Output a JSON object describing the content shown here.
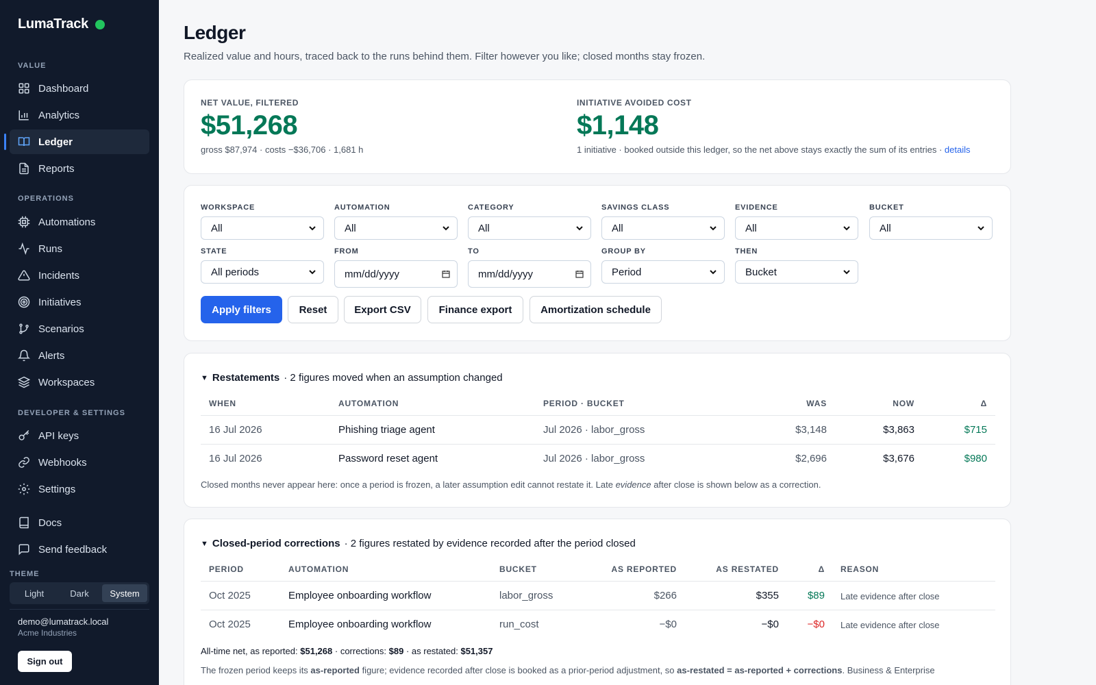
{
  "app": {
    "name": "LumaTrack"
  },
  "sidebar": {
    "sections": [
      {
        "label": "VALUE"
      },
      {
        "label": "OPERATIONS"
      },
      {
        "label": "DEVELOPER & SETTINGS"
      }
    ],
    "items": [
      {
        "label": "Dashboard",
        "icon": "grid-icon"
      },
      {
        "label": "Analytics",
        "icon": "bar-chart-icon"
      },
      {
        "label": "Ledger",
        "icon": "book-open-icon",
        "active": true
      },
      {
        "label": "Reports",
        "icon": "file-text-icon"
      },
      {
        "label": "Automations",
        "icon": "cpu-icon"
      },
      {
        "label": "Runs",
        "icon": "activity-icon"
      },
      {
        "label": "Incidents",
        "icon": "alert-triangle-icon"
      },
      {
        "label": "Initiatives",
        "icon": "target-icon"
      },
      {
        "label": "Scenarios",
        "icon": "git-branch-icon"
      },
      {
        "label": "Alerts",
        "icon": "bell-icon"
      },
      {
        "label": "Workspaces",
        "icon": "layers-icon"
      },
      {
        "label": "API keys",
        "icon": "key-icon"
      },
      {
        "label": "Webhooks",
        "icon": "link-icon"
      },
      {
        "label": "Settings",
        "icon": "gear-icon"
      },
      {
        "label": "Docs",
        "icon": "book-icon"
      },
      {
        "label": "Send feedback",
        "icon": "message-icon"
      }
    ],
    "theme": {
      "label": "THEME",
      "options": [
        "Light",
        "Dark",
        "System"
      ],
      "selected": "System"
    },
    "user": {
      "email": "demo@lumatrack.local",
      "org": "Acme Industries"
    },
    "signout_label": "Sign out"
  },
  "page": {
    "title": "Ledger",
    "subtitle": "Realized value and hours, traced back to the runs behind them. Filter however you like; closed months stay frozen."
  },
  "kpis": {
    "net": {
      "label": "NET VALUE, FILTERED",
      "value": "$51,268",
      "sub": "gross $87,974 · costs −$36,706 · 1,681 h"
    },
    "initiative": {
      "label": "INITIATIVE AVOIDED COST",
      "value": "$1,148",
      "sub": "1 initiative · booked outside this ledger, so the net above stays exactly the sum of its entries · ",
      "link": "details"
    }
  },
  "filters": {
    "workspace": {
      "label": "WORKSPACE",
      "value": "All"
    },
    "automation": {
      "label": "AUTOMATION",
      "value": "All"
    },
    "category": {
      "label": "CATEGORY",
      "value": "All"
    },
    "savings_class": {
      "label": "SAVINGS CLASS",
      "value": "All"
    },
    "evidence": {
      "label": "EVIDENCE",
      "value": "All"
    },
    "bucket": {
      "label": "BUCKET",
      "value": "All"
    },
    "state": {
      "label": "STATE",
      "value": "All periods"
    },
    "from": {
      "label": "FROM",
      "placeholder": "mm/dd/yyyy"
    },
    "to": {
      "label": "TO",
      "placeholder": "mm/dd/yyyy"
    },
    "group_by": {
      "label": "GROUP BY",
      "value": "Period"
    },
    "then": {
      "label": "THEN",
      "value": "Bucket"
    },
    "buttons": {
      "apply": "Apply filters",
      "reset": "Reset",
      "export_csv": "Export CSV",
      "finance_export": "Finance export",
      "amortization": "Amortization schedule"
    }
  },
  "restatements": {
    "title": "Restatements",
    "summary": "· 2 figures moved when an assumption changed",
    "columns": {
      "when": "WHEN",
      "automation": "AUTOMATION",
      "period_bucket": "PERIOD · BUCKET",
      "was": "WAS",
      "now": "NOW",
      "delta": "Δ"
    },
    "rows": [
      {
        "when": "16 Jul 2026",
        "automation": "Phishing triage agent",
        "period_bucket": "Jul 2026 · labor_gross",
        "was": "$3,148",
        "now": "$3,863",
        "delta": "$715"
      },
      {
        "when": "16 Jul 2026",
        "automation": "Password reset agent",
        "period_bucket": "Jul 2026 · labor_gross",
        "was": "$2,696",
        "now": "$3,676",
        "delta": "$980"
      }
    ],
    "note_before": "Closed months never appear here: once a period is frozen, a later assumption edit cannot restate it. Late ",
    "note_em": "evidence",
    "note_after": " after close is shown below as a correction."
  },
  "corrections": {
    "title": "Closed-period corrections",
    "summary": "· 2 figures restated by evidence recorded after the period closed",
    "columns": {
      "period": "PERIOD",
      "automation": "AUTOMATION",
      "bucket": "BUCKET",
      "as_reported": "AS REPORTED",
      "as_restated": "AS RESTATED",
      "delta": "Δ",
      "reason": "REASON"
    },
    "rows": [
      {
        "period": "Oct 2025",
        "automation": "Employee onboarding workflow",
        "bucket": "labor_gross",
        "as_reported": "$266",
        "as_restated": "$355",
        "delta": "$89",
        "reason": "Late evidence after close"
      },
      {
        "period": "Oct 2025",
        "automation": "Employee onboarding workflow",
        "bucket": "run_cost",
        "as_reported": "−$0",
        "as_restated": "−$0",
        "delta": "−$0",
        "reason": "Late evidence after close"
      }
    ],
    "totals": {
      "reported_label": "All-time net, as reported:",
      "reported_value": "$51,268",
      "corrections_label": "· corrections:",
      "corrections_value": "$89",
      "restated_label": "· as restated:",
      "restated_value": "$51,357"
    },
    "footnote": {
      "t1": "The frozen period keeps its ",
      "b1": "as-reported",
      "t2": " figure; evidence recorded after close is booked as a prior-period adjustment, so ",
      "b2": "as-restated = as-reported + corrections",
      "t3": ". Business & Enterprise"
    }
  },
  "colors": {
    "accent": "#2563eb",
    "positive": "#047857",
    "negative": "#dc2626",
    "sidebar_bg": "#111a2b"
  }
}
